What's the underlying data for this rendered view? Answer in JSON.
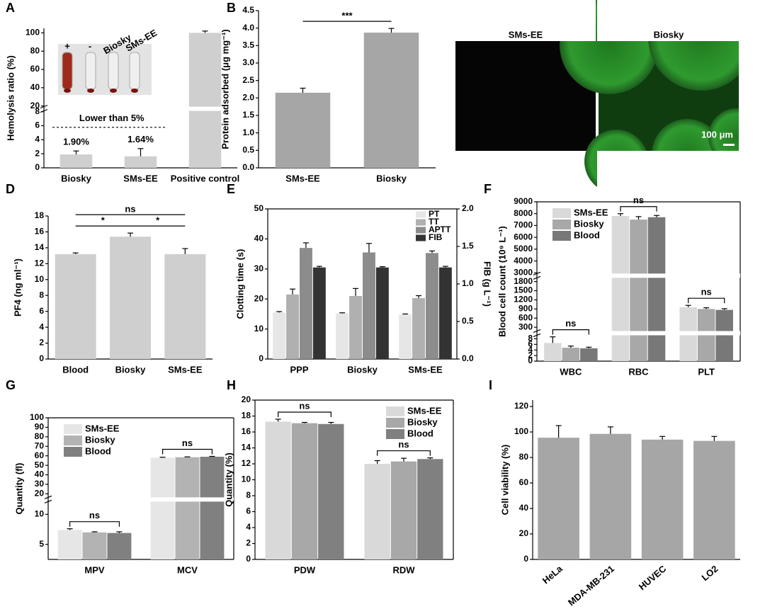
{
  "chart_data": [
    {
      "panel": "A",
      "type": "bar",
      "ylabel": "Hemolysis ratio (%)",
      "categories": [
        "Biosky",
        "SMs-EE",
        "Positive control"
      ],
      "values": [
        1.9,
        1.64,
        100
      ],
      "errors": [
        0.5,
        1.1,
        2
      ],
      "value_labels": [
        "1.90%",
        "1.64%",
        null
      ],
      "color": "#cfcfcf",
      "annotation": "Lower than 5%",
      "inset_labels": [
        "+",
        "-",
        "Biosky",
        "SMs-EE"
      ],
      "y_segments": [
        {
          "ylim": [
            0,
            8
          ],
          "yticks": [
            0,
            2,
            4,
            6,
            8
          ]
        },
        {
          "ylim": [
            20,
            105
          ],
          "yticks": [
            20,
            40,
            60,
            80,
            100
          ]
        }
      ]
    },
    {
      "panel": "B",
      "type": "bar",
      "ylabel": "Protein adsorbed (μg mg⁻¹)",
      "categories": [
        "SMs-EE",
        "Biosky"
      ],
      "values": [
        2.15,
        3.87
      ],
      "errors": [
        0.13,
        0.12
      ],
      "color": "#a6a6a6",
      "ylim": [
        0,
        4.5
      ],
      "yticks": [
        {
          "value": 0,
          "label": "0.0"
        },
        {
          "value": 0.5,
          "label": "0.5"
        },
        {
          "value": 1,
          "label": "1.0"
        },
        {
          "value": 1.5,
          "label": "1.5"
        },
        {
          "value": 2,
          "label": "2.0"
        },
        {
          "value": 2.5,
          "label": "2.5"
        },
        {
          "value": 3,
          "label": "3.0"
        },
        {
          "value": 3.5,
          "label": "3.5"
        },
        {
          "value": 4,
          "label": "4.0"
        },
        {
          "value": 4.5,
          "label": "4.5"
        }
      ],
      "significance": [
        {
          "between": [
            "SMs-EE",
            "Biosky"
          ],
          "label": "***"
        }
      ]
    },
    {
      "panel": "C",
      "type": "image",
      "labels": [
        "SMs-EE",
        "Biosky"
      ],
      "scale_bar": "100 μm"
    },
    {
      "panel": "D",
      "type": "bar",
      "ylabel": "PF4 (ng ml⁻¹)",
      "categories": [
        "Blood",
        "Biosky",
        "SMs-EE"
      ],
      "values": [
        13.2,
        15.4,
        13.2
      ],
      "errors": [
        0.15,
        0.45,
        0.7
      ],
      "color": "#cfcfcf",
      "ylim": [
        0,
        18
      ],
      "yticks": [
        0,
        2,
        4,
        6,
        8,
        10,
        12,
        14,
        16,
        18
      ],
      "significance": [
        {
          "between": [
            "Blood",
            "Biosky"
          ],
          "label": "*"
        },
        {
          "between": [
            "Biosky",
            "SMs-EE"
          ],
          "label": "*"
        },
        {
          "between": [
            "Blood",
            "SMs-EE"
          ],
          "label": "ns"
        }
      ]
    },
    {
      "panel": "E",
      "type": "grouped_bar",
      "ylabel": "Clotting time (s)",
      "y2label": "FIB (g L⁻¹)",
      "categories": [
        "PPP",
        "Biosky",
        "SMs-EE"
      ],
      "ylim": [
        0,
        50
      ],
      "yticks": [
        0,
        10,
        20,
        30,
        40,
        50
      ],
      "y2lim": [
        0,
        2
      ],
      "y2ticks": [
        {
          "value": 0,
          "label": "0.0"
        },
        {
          "value": 0.5,
          "label": "0.5"
        },
        {
          "value": 1,
          "label": "1.0"
        },
        {
          "value": 1.5,
          "label": "1.5"
        },
        {
          "value": 2,
          "label": "2.0"
        }
      ],
      "legend": "upper right",
      "series": [
        {
          "name": "PT",
          "color": "#e6e6e6",
          "values": [
            15.5,
            15.2,
            14.8
          ],
          "errors": [
            0.3,
            0.2,
            0.2
          ]
        },
        {
          "name": "TT",
          "color": "#b0b0b0",
          "values": [
            21.5,
            21,
            20.3
          ],
          "errors": [
            1.8,
            2.5,
            0.8
          ]
        },
        {
          "name": "APTT",
          "color": "#8c8c8c",
          "values": [
            37,
            35.5,
            35.3
          ],
          "errors": [
            1.7,
            3,
            0.7
          ]
        },
        {
          "name": "FIB",
          "color": "#333333",
          "axis": "y2",
          "values": [
            1.22,
            1.22,
            1.22
          ],
          "errors": [
            0.015,
            0.01,
            0.015
          ]
        }
      ]
    },
    {
      "panel": "F",
      "type": "grouped_bar",
      "ylabel": "Blood cell count (10⁹ L⁻¹)",
      "categories": [
        "WBC",
        "RBC",
        "PLT"
      ],
      "legend": "upper left",
      "y_segments": [
        {
          "ylim": [
            0,
            9
          ],
          "yticks": [
            0,
            2,
            4,
            6,
            8
          ]
        },
        {
          "ylim": [
            200,
            1900
          ],
          "yticks": [
            300,
            600,
            900,
            1200,
            1500,
            1800
          ]
        },
        {
          "ylim": [
            3000,
            9000
          ],
          "yticks": [
            3000,
            4000,
            5000,
            6000,
            7000,
            8000,
            9000
          ]
        }
      ],
      "series": [
        {
          "name": "SMs-EE",
          "color": "#d9d9d9",
          "values": [
            6.5,
            7800,
            960
          ],
          "errors": [
            2.2,
            200,
            60
          ]
        },
        {
          "name": "Biosky",
          "color": "#a8a8a8",
          "values": [
            4.8,
            7500,
            900
          ],
          "errors": [
            0.6,
            250,
            40
          ]
        },
        {
          "name": "Blood",
          "color": "#787878",
          "values": [
            4.6,
            7700,
            870
          ],
          "errors": [
            0.4,
            150,
            40
          ]
        }
      ],
      "significance": [
        {
          "category": "WBC",
          "label": "ns"
        },
        {
          "category": "RBC",
          "label": "ns"
        },
        {
          "category": "PLT",
          "label": "ns"
        }
      ]
    },
    {
      "panel": "G",
      "type": "grouped_bar",
      "ylabel": "Quantity (fl)",
      "categories": [
        "MPV",
        "MCV"
      ],
      "legend": "upper left",
      "y_segments": [
        {
          "ylim": [
            2.5,
            12
          ],
          "yticks": [
            5,
            10
          ]
        },
        {
          "ylim": [
            17,
            100
          ],
          "yticks": [
            20,
            30,
            40,
            50,
            60,
            70,
            80,
            90,
            100
          ]
        }
      ],
      "series": [
        {
          "name": "SMs-EE",
          "color": "#e6e6e6",
          "values": [
            7.4,
            58
          ],
          "errors": [
            0.2,
            0.5
          ]
        },
        {
          "name": "Biosky",
          "color": "#b3b3b3",
          "values": [
            7.0,
            58.5
          ],
          "errors": [
            0.1,
            0.4
          ]
        },
        {
          "name": "Blood",
          "color": "#808080",
          "values": [
            6.9,
            59
          ],
          "errors": [
            0.2,
            0.4
          ]
        }
      ],
      "significance": [
        {
          "category": "MPV",
          "label": "ns"
        },
        {
          "category": "MCV",
          "label": "ns"
        }
      ]
    },
    {
      "panel": "H",
      "type": "grouped_bar",
      "ylabel": "Quantity (%)",
      "categories": [
        "PDW",
        "RDW"
      ],
      "legend": "upper right",
      "ylim": [
        0,
        20
      ],
      "yticks": [
        0,
        2,
        4,
        6,
        8,
        10,
        12,
        14,
        16,
        18,
        20
      ],
      "series": [
        {
          "name": "SMs-EE",
          "color": "#d9d9d9",
          "values": [
            17.3,
            12.0
          ],
          "errors": [
            0.3,
            0.4
          ]
        },
        {
          "name": "Biosky",
          "color": "#a8a8a8",
          "values": [
            17.1,
            12.3
          ],
          "errors": [
            0.1,
            0.4
          ]
        },
        {
          "name": "Blood",
          "color": "#808080",
          "values": [
            17.0,
            12.6
          ],
          "errors": [
            0.2,
            0.15
          ]
        }
      ],
      "significance": [
        {
          "category": "PDW",
          "label": "ns"
        },
        {
          "category": "RDW",
          "label": "ns"
        }
      ]
    },
    {
      "panel": "I",
      "type": "bar",
      "ylabel": "Cell viability (%)",
      "categories": [
        "HeLa",
        "MDA-MB-231",
        "HUVEC",
        "LO2"
      ],
      "values": [
        95.5,
        98.5,
        94,
        93
      ],
      "errors": [
        9.5,
        5.5,
        2.5,
        3.5
      ],
      "color": "#a6a6a6",
      "ylim": [
        0,
        125
      ],
      "yticks": [
        0,
        20,
        40,
        60,
        80,
        100,
        120
      ],
      "xtick_rotation": -40
    }
  ]
}
